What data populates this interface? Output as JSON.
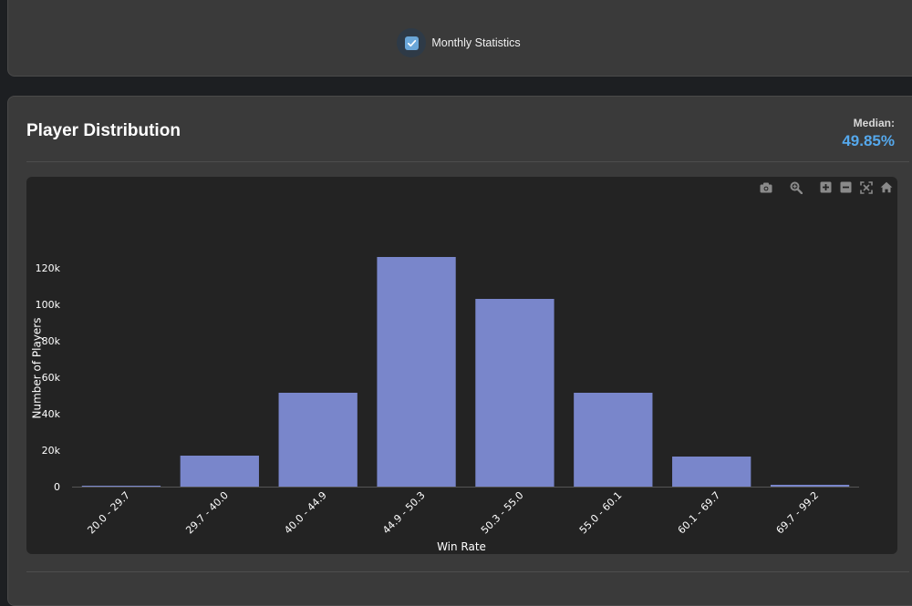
{
  "toggle": {
    "label": "Monthly Statistics",
    "checked": true
  },
  "section": {
    "title": "Player Distribution",
    "median_label": "Median:",
    "median_value": "49.85%"
  },
  "colors": {
    "bar": "#7986cb",
    "median_accent": "#55a8ec",
    "plot_bg": "#232323",
    "panel_bg": "#3a3a3a"
  },
  "modebar_icons": [
    "camera-icon",
    "zoom-icon",
    "zoom-in-icon",
    "zoom-out-icon",
    "autoscale-icon",
    "home-icon"
  ],
  "chart_data": {
    "type": "bar",
    "categories": [
      "20.0 - 29.7",
      "29.7 - 40.0",
      "40.0 - 44.9",
      "44.9 - 50.3",
      "50.3 - 55.0",
      "55.0 - 60.1",
      "60.1 - 69.7",
      "69.7 - 99.2"
    ],
    "values": [
      500,
      17000,
      51500,
      126000,
      103000,
      51500,
      16500,
      1000
    ],
    "xlabel": "Win Rate",
    "ylabel": "Number of Players",
    "ylim": [
      0,
      150000
    ],
    "yticks": [
      0,
      20000,
      40000,
      60000,
      80000,
      100000,
      120000
    ],
    "ytick_labels": [
      "0",
      "20k",
      "40k",
      "60k",
      "80k",
      "100k",
      "120k"
    ],
    "grid": false,
    "legend": "none"
  }
}
